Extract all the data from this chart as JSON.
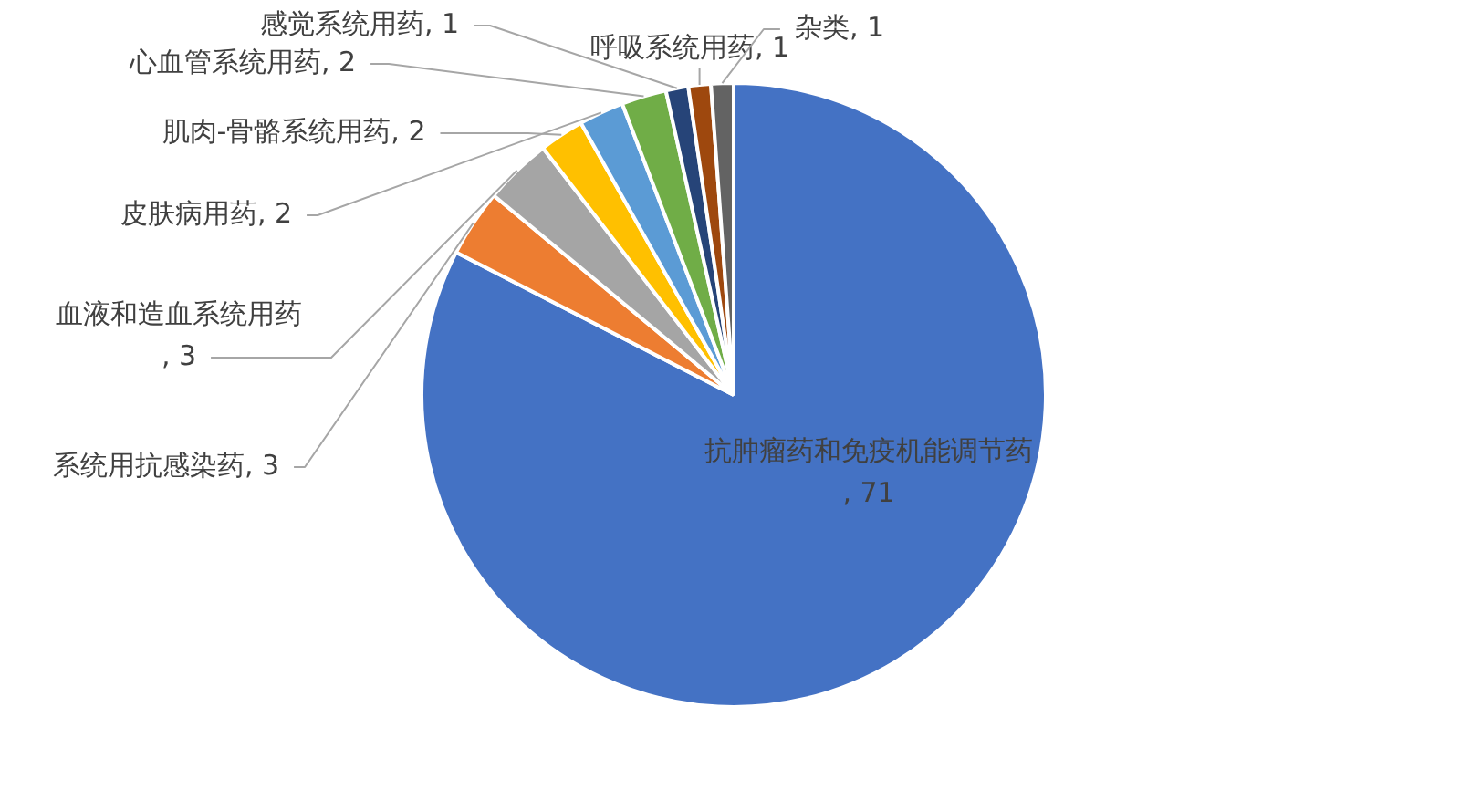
{
  "chart_data": {
    "type": "pie",
    "categories": [
      "抗肿瘤药和免疫机能调节药",
      "系统用抗感染药",
      "血液和造血系统用药",
      "肌肉-骨骼系统用药",
      "皮肤病用药",
      "心血管系统用药",
      "感觉系统用药",
      "呼吸系统用药",
      "杂类"
    ],
    "values": [
      71,
      3,
      3,
      2,
      2,
      2,
      1,
      1,
      1
    ],
    "value_labels": [
      ", 71",
      ", 3",
      ", 3",
      ", 2",
      ", 2",
      ", 2",
      ", 1",
      ", 1",
      ", 1"
    ],
    "colors": [
      "#4472c4",
      "#ed7d31",
      "#a5a5a5",
      "#ffc000",
      "#5b9bd5",
      "#70ad47",
      "#264478",
      "#9e480e",
      "#636363"
    ]
  }
}
